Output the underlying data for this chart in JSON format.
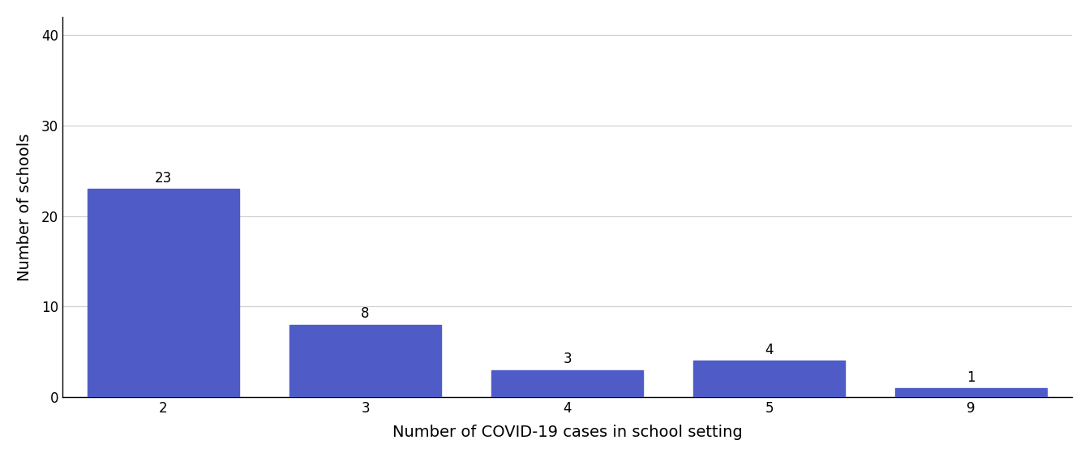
{
  "categories": [
    "2",
    "3",
    "4",
    "5",
    "9"
  ],
  "values": [
    23,
    8,
    3,
    4,
    1
  ],
  "bar_color": "#4f5cc7",
  "xlabel": "Number of COVID-19 cases in school setting",
  "ylabel": "Number of schools",
  "ylim": [
    0,
    42
  ],
  "yticks": [
    0,
    10,
    20,
    30,
    40
  ],
  "bar_width": 0.75,
  "annotation_fontsize": 12,
  "axis_label_fontsize": 14,
  "tick_fontsize": 12,
  "background_color": "#ffffff",
  "grid_color": "#cccccc",
  "spine_color": "#000000"
}
